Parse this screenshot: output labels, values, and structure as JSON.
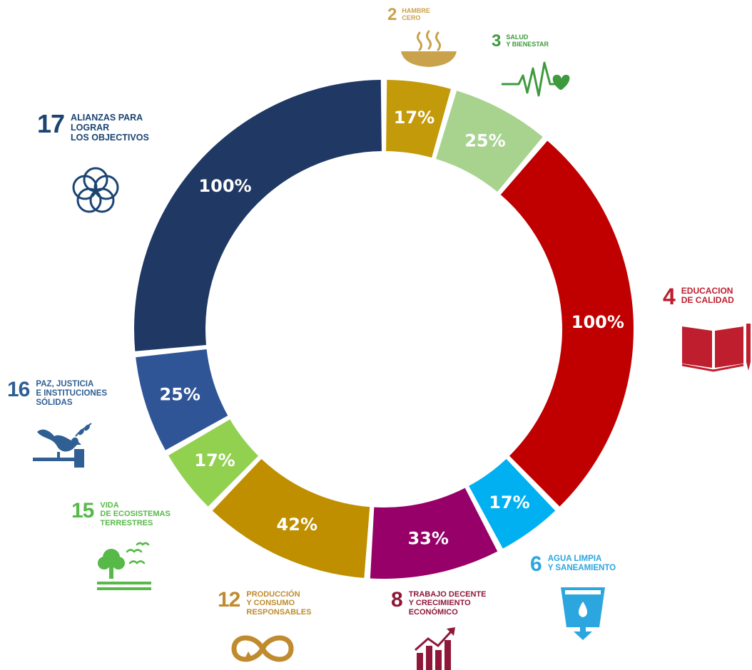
{
  "chart_data": {
    "type": "donut",
    "categories": [
      {
        "goal": "2",
        "label": "HAMBRE\nCERO",
        "value": 17,
        "value_label": "17%",
        "color": "#C29A0A",
        "icon": "bowl-icon"
      },
      {
        "goal": "3",
        "label": "SALUD\nY BIENESTAR",
        "value": 25,
        "value_label": "25%",
        "color": "#A8D38F",
        "icon": "heartbeat-icon"
      },
      {
        "goal": "4",
        "label": "EDUCACION\nDE CALIDAD",
        "value": 100,
        "value_label": "100%",
        "color": "#C00000",
        "icon": "book-pencil-icon"
      },
      {
        "goal": "6",
        "label": "AGUA LIMPIA\nY SANEAMIENTO",
        "value": 17,
        "value_label": "17%",
        "color": "#00B0F0",
        "icon": "water-glass-icon"
      },
      {
        "goal": "8",
        "label": "TRABAJO DECENTE\nY CRECIMIENTO\nECONÓMICO",
        "value": 33,
        "value_label": "33%",
        "color": "#960068",
        "icon": "growth-chart-icon"
      },
      {
        "goal": "12",
        "label": "PRODUCCIÓN\nY CONSUMO\nRESPONSABLES",
        "value": 42,
        "value_label": "42%",
        "color": "#BF8F00",
        "icon": "infinity-icon"
      },
      {
        "goal": "15",
        "label": "VIDA\nDE ECOSISTEMAS\nTERRESTRES",
        "value": 17,
        "value_label": "17%",
        "color": "#92D050",
        "icon": "tree-birds-icon"
      },
      {
        "goal": "16",
        "label": "PAZ, JUSTICIA\nE INSTITUCIONES\nSÓLIDAS",
        "value": 25,
        "value_label": "25%",
        "color": "#2F5597",
        "icon": "dove-gavel-icon"
      },
      {
        "goal": "17",
        "label": "ALIANZAS PARA\nLOGRAR\nLOS OBJECTIVOS",
        "value": 100,
        "value_label": "100%",
        "color": "#1F3864",
        "icon": "flower-rings-icon"
      }
    ],
    "label_colors": {
      "2": "#C9A24B",
      "3": "#3E9A3E",
      "4": "#BE1E2D",
      "6": "#2BA6DE",
      "8": "#8F1838",
      "12": "#BF8B2E",
      "15": "#56B948",
      "16": "#2F5F93",
      "17": "#1B4473"
    }
  }
}
